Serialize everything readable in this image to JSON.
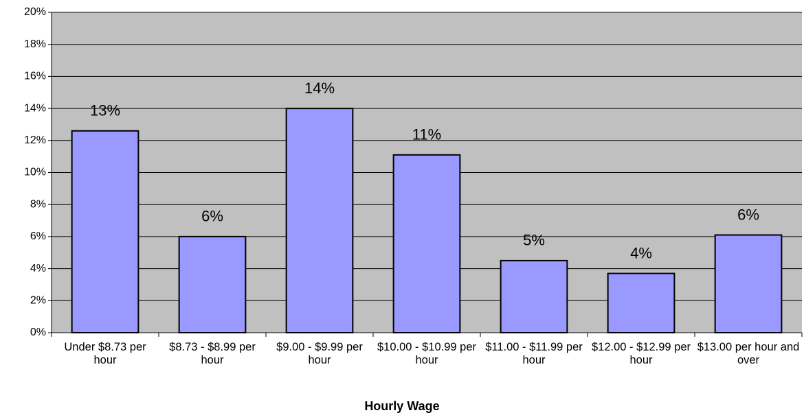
{
  "chart_data": {
    "type": "bar",
    "x_label": "Hourly Wage",
    "categories": [
      "Under $8.73 per hour",
      "$8.73 - $8.99 per hour",
      "$9.00 - $9.99 per hour",
      "$10.00 - $10.99 per hour",
      "$11.00 - $11.99 per hour",
      "$12.00 - $12.99 per hour",
      "$13.00 per hour and over"
    ],
    "values": [
      12.6,
      6.0,
      14.0,
      11.1,
      4.5,
      3.7,
      6.1
    ],
    "value_labels": [
      "13%",
      "6%",
      "14%",
      "11%",
      "5%",
      "4%",
      "6%"
    ],
    "color": "#9999ff",
    "ylim": [
      0,
      20
    ],
    "yticks": [
      {
        "value": 0,
        "label": "0%"
      },
      {
        "value": 2,
        "label": "2%"
      },
      {
        "value": 4,
        "label": "4%"
      },
      {
        "value": 6,
        "label": "6%"
      },
      {
        "value": 8,
        "label": "8%"
      },
      {
        "value": 10,
        "label": "10%"
      },
      {
        "value": 12,
        "label": "12%"
      },
      {
        "value": 14,
        "label": "14%"
      },
      {
        "value": 16,
        "label": "16%"
      },
      {
        "value": 18,
        "label": "18%"
      },
      {
        "value": 20,
        "label": "20%"
      }
    ],
    "grid": true
  }
}
